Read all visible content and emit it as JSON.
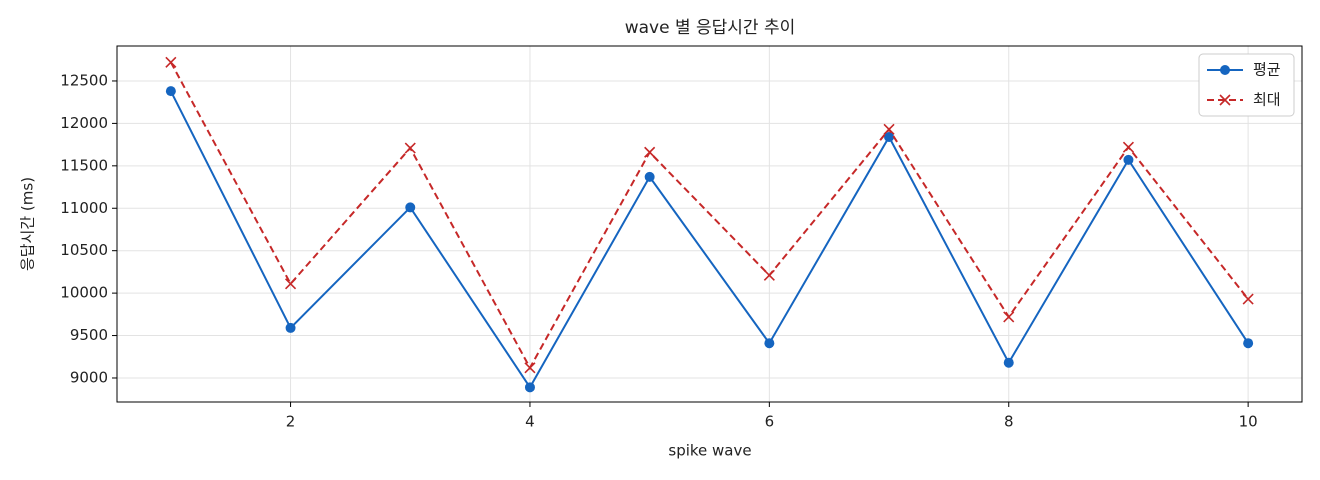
{
  "chart_data": {
    "type": "line",
    "title": "wave 별 응답시간 추이",
    "xlabel": "spike wave",
    "ylabel": "응답시간 (ms)",
    "x": [
      1,
      2,
      3,
      4,
      5,
      6,
      7,
      8,
      9,
      10
    ],
    "series": [
      {
        "name": "평균",
        "color": "#1565c0",
        "marker": "o",
        "linestyle": "solid",
        "values": [
          12380,
          9590,
          11010,
          8890,
          11370,
          9410,
          11840,
          9180,
          11570,
          9410
        ]
      },
      {
        "name": "최대",
        "color": "#c62828",
        "marker": "x",
        "linestyle": "dashed",
        "values": [
          12720,
          10110,
          11710,
          9120,
          11660,
          10210,
          11930,
          9720,
          11720,
          9930
        ]
      }
    ],
    "xlim": [
      0.55,
      10.45
    ],
    "ylim": [
      8717,
      12912
    ],
    "xticks": [
      2,
      4,
      6,
      8,
      10
    ],
    "yticks": [
      9000,
      9500,
      10000,
      10500,
      11000,
      11500,
      12000,
      12500
    ],
    "grid": true,
    "legend": "upper right"
  }
}
